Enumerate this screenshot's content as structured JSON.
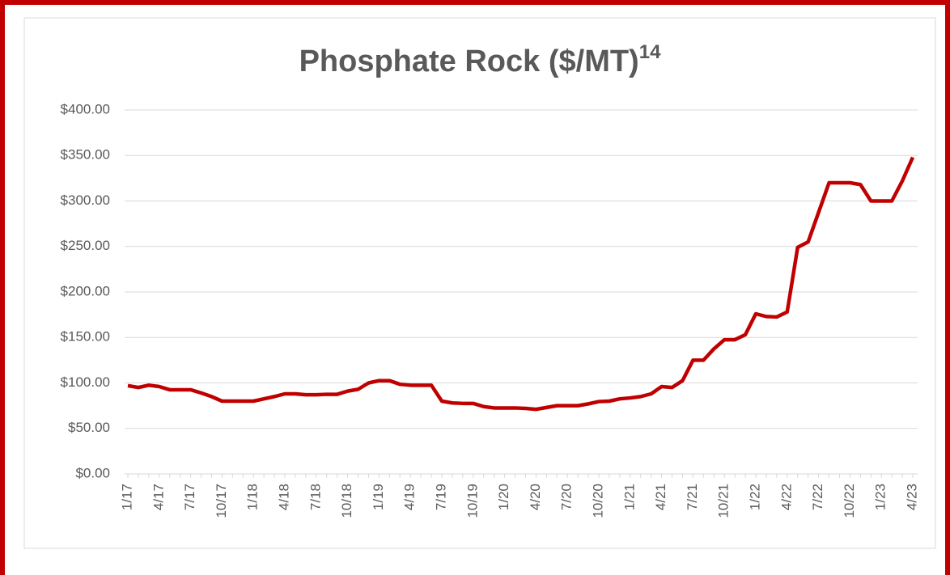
{
  "chart_data": {
    "type": "line",
    "title": "Phosphate Rock ($/MT)",
    "title_note": "14",
    "categories": [
      "1/17",
      null,
      null,
      "4/17",
      null,
      null,
      "7/17",
      null,
      null,
      "10/17",
      null,
      null,
      "1/18",
      null,
      null,
      "4/18",
      null,
      null,
      "7/18",
      null,
      null,
      "10/18",
      null,
      null,
      "1/19",
      null,
      null,
      "4/19",
      null,
      null,
      "7/19",
      null,
      null,
      "10/19",
      null,
      null,
      "1/20",
      null,
      null,
      "4/20",
      null,
      null,
      "7/20",
      null,
      null,
      "10/20",
      null,
      null,
      "1/21",
      null,
      null,
      "4/21",
      null,
      null,
      "7/21",
      null,
      null,
      "10/21",
      null,
      null,
      "1/22",
      null,
      null,
      "4/22",
      null,
      null,
      "7/22",
      null,
      null,
      "10/22",
      null,
      null,
      "1/23",
      null,
      null,
      "4/23"
    ],
    "series": [
      {
        "name": "Phosphate Rock",
        "color": "#c00000",
        "values": [
          97,
          95,
          97.5,
          96,
          92.5,
          92.5,
          92.5,
          89,
          85,
          80,
          80,
          80,
          80,
          82.5,
          85,
          88,
          88,
          87,
          87,
          87.5,
          87.5,
          91,
          93,
          100,
          102.5,
          102.5,
          98.5,
          97.5,
          97.5,
          97.5,
          80,
          78,
          77.5,
          77.5,
          74,
          72.5,
          72.5,
          72.5,
          72,
          71,
          73,
          75,
          75,
          75,
          77,
          79.5,
          80,
          82.5,
          83.5,
          85,
          88,
          96,
          95,
          102.5,
          125,
          125,
          137.5,
          147.5,
          147.5,
          153,
          176,
          173,
          172.5,
          178,
          249,
          255,
          287.5,
          320,
          320,
          320,
          318,
          300,
          300,
          300,
          322,
          348
        ]
      }
    ],
    "ylim": [
      0,
      400
    ],
    "yticks": [
      {
        "value": 0,
        "label": "$0.00"
      },
      {
        "value": 50,
        "label": "$50.00"
      },
      {
        "value": 100,
        "label": "$100.00"
      },
      {
        "value": 150,
        "label": "$150.00"
      },
      {
        "value": 200,
        "label": "$200.00"
      },
      {
        "value": 250,
        "label": "$250.00"
      },
      {
        "value": 300,
        "label": "$300.00"
      },
      {
        "value": 350,
        "label": "$350.00"
      },
      {
        "value": 400,
        "label": "$400.00"
      }
    ],
    "grid": true
  }
}
